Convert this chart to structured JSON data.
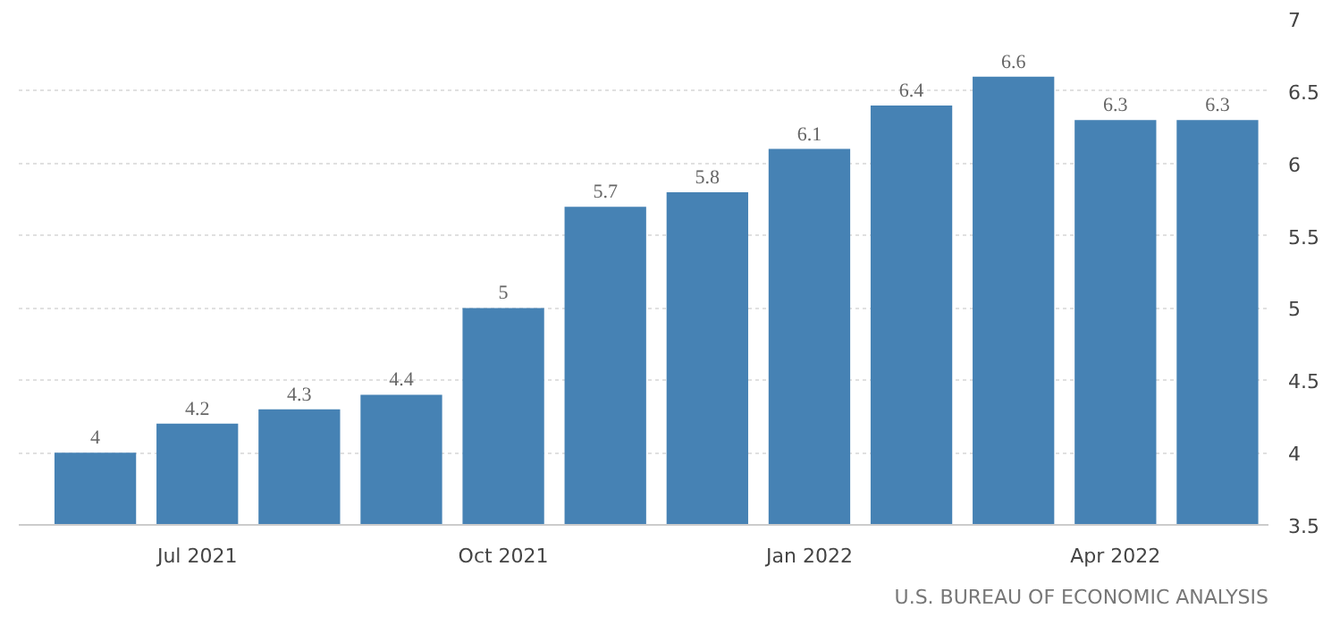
{
  "chart_data": {
    "type": "bar",
    "categories": [
      null,
      "Jul 2021",
      null,
      null,
      "Oct 2021",
      null,
      null,
      "Jan 2022",
      null,
      null,
      "Apr 2022",
      null
    ],
    "values": [
      4,
      4.2,
      4.3,
      4.4,
      5,
      5.7,
      5.8,
      6.1,
      6.4,
      6.6,
      6.3,
      6.3
    ],
    "color": "#4682b4",
    "ylim": [
      3.5,
      7
    ],
    "yticks": [
      3.5,
      4,
      4.5,
      5,
      5.5,
      6,
      6.5,
      7
    ],
    "grid": "y",
    "data_labels": true,
    "annotations": [
      "U.S. BUREAU OF ECONOMIC ANALYSIS"
    ]
  }
}
